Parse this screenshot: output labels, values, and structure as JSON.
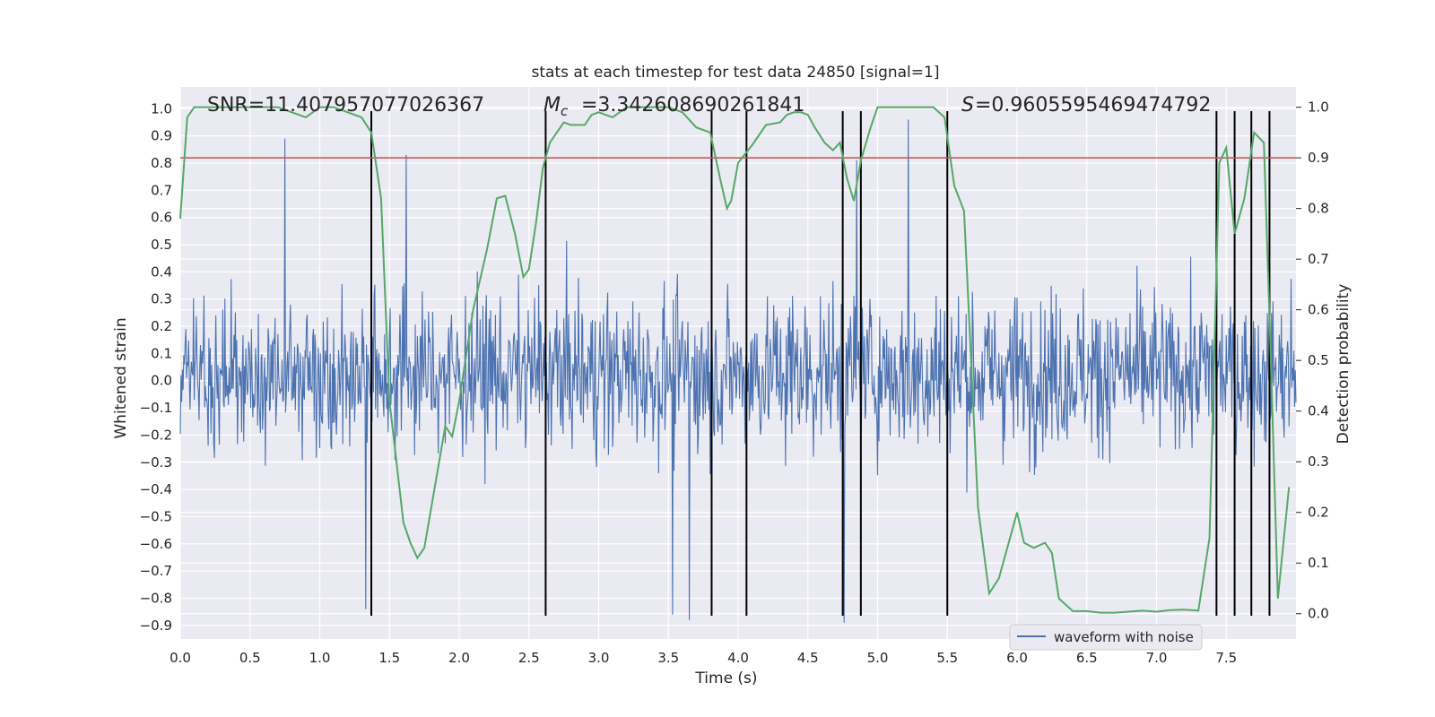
{
  "chart_data": {
    "type": "line",
    "title": "stats at each timestep for test data 24850 [signal=1]",
    "xlabel": "Time (s)",
    "ylabel": "Whitened strain",
    "y2label": "Detection probability",
    "xlim": [
      0.0,
      8.0
    ],
    "ylim": [
      -0.95,
      1.08
    ],
    "y2lim": [
      -0.05,
      1.04
    ],
    "xticks": [
      "0.0",
      "0.5",
      "1.0",
      "1.5",
      "2.0",
      "2.5",
      "3.0",
      "3.5",
      "4.0",
      "4.5",
      "5.0",
      "5.5",
      "6.0",
      "6.5",
      "7.0",
      "7.5"
    ],
    "yticks": [
      "1.0",
      "0.9",
      "0.8",
      "0.7",
      "0.6",
      "0.5",
      "0.4",
      "0.3",
      "0.2",
      "0.1",
      "0.0",
      "-0.1",
      "-0.2",
      "-0.3",
      "-0.4",
      "-0.5",
      "-0.6",
      "-0.7",
      "-0.8",
      "-0.9"
    ],
    "y2ticks": [
      "1.0",
      "0.9",
      "0.8",
      "0.7",
      "0.6",
      "0.5",
      "0.4",
      "0.3",
      "0.2",
      "0.1",
      "0.0"
    ],
    "grid": true,
    "legend_position": "lower-right",
    "annotations": {
      "snr": "SNR=11.407957077026367",
      "mc_value": "=3.342608690261841",
      "s_value": "=0.9605595469474792"
    },
    "series": [
      {
        "name": "waveform with noise",
        "axis": "left",
        "color": "#4c72b0",
        "description_envelope": {
          "typical_range": [
            -0.45,
            0.5
          ],
          "peaks_up": [
            {
              "t": 0.75,
              "v": 0.89
            },
            {
              "t": 1.62,
              "v": 0.83
            },
            {
              "t": 4.75,
              "v": 0.68
            },
            {
              "t": 5.22,
              "v": 0.96
            },
            {
              "t": 4.85,
              "v": 0.81
            }
          ],
          "peaks_down": [
            {
              "t": 1.33,
              "v": -0.84
            },
            {
              "t": 3.53,
              "v": -0.86
            },
            {
              "t": 3.65,
              "v": -0.88
            },
            {
              "t": 4.76,
              "v": -0.89
            }
          ]
        }
      },
      {
        "name": "detection probability",
        "axis": "right",
        "color": "#55a868",
        "x": [
          0.0,
          0.05,
          0.1,
          0.2,
          0.3,
          0.4,
          0.5,
          0.6,
          0.7,
          0.8,
          0.9,
          0.95,
          1.0,
          1.1,
          1.2,
          1.3,
          1.37,
          1.44,
          1.5,
          1.6,
          1.65,
          1.7,
          1.75,
          1.8,
          1.9,
          1.95,
          2.0,
          2.1,
          2.2,
          2.27,
          2.33,
          2.4,
          2.46,
          2.5,
          2.55,
          2.6,
          2.65,
          2.7,
          2.75,
          2.8,
          2.9,
          2.95,
          3.0,
          3.1,
          3.2,
          3.3,
          3.4,
          3.5,
          3.6,
          3.7,
          3.8,
          3.87,
          3.92,
          3.95,
          4.0,
          4.1,
          4.2,
          4.3,
          4.35,
          4.4,
          4.45,
          4.5,
          4.55,
          4.62,
          4.68,
          4.73,
          4.78,
          4.83,
          4.88,
          4.95,
          5.0,
          5.1,
          5.2,
          5.3,
          5.4,
          5.48,
          5.55,
          5.62,
          5.72,
          5.8,
          5.87,
          6.0,
          6.05,
          6.12,
          6.2,
          6.25,
          6.3,
          6.4,
          6.5,
          6.6,
          6.7,
          6.8,
          6.9,
          7.0,
          7.1,
          7.2,
          7.3,
          7.38,
          7.45,
          7.5,
          7.56,
          7.63,
          7.7,
          7.77,
          7.82,
          7.87,
          7.95
        ],
        "values": [
          0.78,
          0.98,
          1.0,
          1.0,
          1.0,
          1.0,
          1.0,
          1.0,
          1.0,
          0.99,
          0.98,
          0.99,
          1.0,
          1.0,
          0.99,
          0.98,
          0.95,
          0.82,
          0.42,
          0.18,
          0.14,
          0.11,
          0.13,
          0.21,
          0.37,
          0.35,
          0.42,
          0.6,
          0.72,
          0.82,
          0.825,
          0.75,
          0.665,
          0.68,
          0.77,
          0.88,
          0.93,
          0.95,
          0.97,
          0.965,
          0.965,
          0.985,
          0.99,
          0.98,
          1.0,
          1.0,
          1.0,
          1.0,
          0.99,
          0.96,
          0.95,
          0.86,
          0.8,
          0.815,
          0.89,
          0.925,
          0.965,
          0.97,
          0.985,
          0.99,
          0.99,
          0.985,
          0.96,
          0.93,
          0.915,
          0.93,
          0.86,
          0.815,
          0.895,
          0.96,
          1.0,
          1.0,
          1.0,
          1.0,
          1.0,
          0.98,
          0.845,
          0.795,
          0.21,
          0.04,
          0.07,
          0.2,
          0.14,
          0.13,
          0.14,
          0.12,
          0.03,
          0.005,
          0.005,
          0.002,
          0.002,
          0.004,
          0.006,
          0.004,
          0.007,
          0.008,
          0.006,
          0.15,
          0.89,
          0.92,
          0.75,
          0.82,
          0.95,
          0.93,
          0.5,
          0.03,
          0.25
        ]
      }
    ],
    "horizontal_line": {
      "axis": "right",
      "value": 0.9,
      "color": "#c44e52"
    },
    "vertical_markers_s": [
      1.37,
      2.62,
      3.81,
      4.06,
      4.75,
      4.88,
      5.5,
      7.43,
      7.56,
      7.68,
      7.81
    ]
  }
}
